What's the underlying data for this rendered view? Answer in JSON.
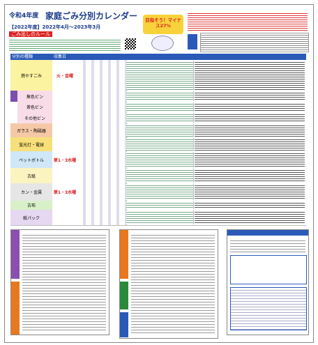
{
  "header": {
    "prefix": "令和4年度",
    "title": "家庭ごみ分別カレンダー",
    "period": "【2022年度】2022年4月～2023年3月",
    "slogan": "目指そう！マイナス27%",
    "rules": "ごみ出しのルール"
  },
  "table": {
    "headers": [
      "分別の種類",
      "収集日"
    ],
    "rows": [
      {
        "category": "燃やすごみ",
        "day": "火・金曜"
      },
      {
        "category": "無色ビン"
      },
      {
        "category": "茶色ビン"
      },
      {
        "category": "その他ビン"
      },
      {
        "category": "ガラス・陶磁器"
      },
      {
        "category": "蛍光灯・電球"
      },
      {
        "category": "ペットボトル",
        "day": "第1・3水曜"
      },
      {
        "category": "古紙"
      },
      {
        "category": "カン・金属",
        "day": "第1・3水曜"
      },
      {
        "category": "古布"
      },
      {
        "category": "紙パック"
      }
    ]
  }
}
